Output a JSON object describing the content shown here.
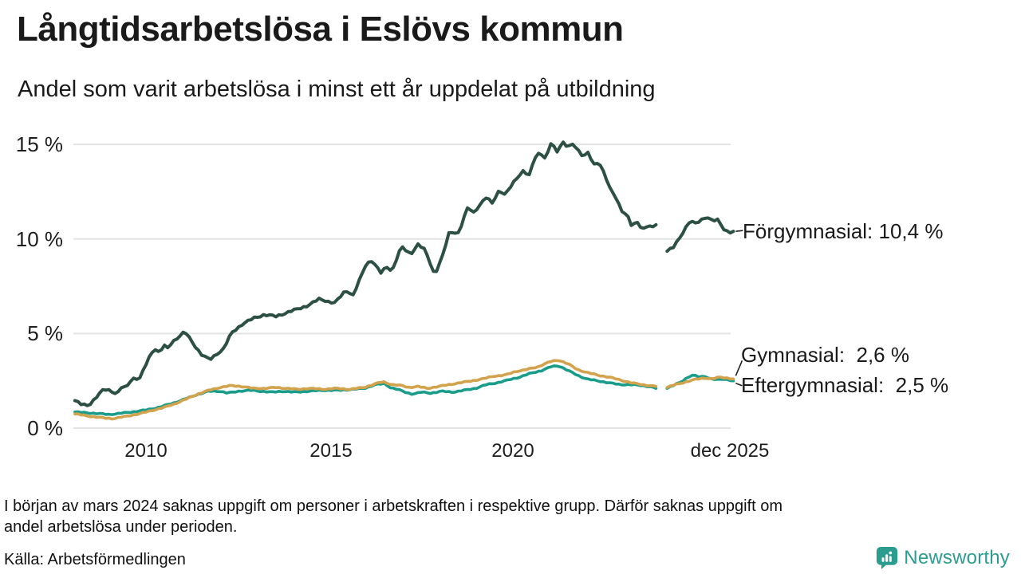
{
  "header": {
    "title": "Långtidsarbetslösa i Eslövs kommun",
    "subtitle": "Andel som varit arbetslösa i minst ett år uppdelat på utbildning"
  },
  "chart_data": {
    "type": "line",
    "unit": "%",
    "ylim": [
      0,
      15.5
    ],
    "x_range": [
      2008.08,
      2025.92
    ],
    "grid": "horizontal-only",
    "legend_position": "end-of-line-labels",
    "yticks": [
      {
        "value": 15,
        "label": "15 %"
      },
      {
        "value": 10,
        "label": "10 %"
      },
      {
        "value": 5,
        "label": "5 %"
      },
      {
        "value": 0,
        "label": "0 %"
      }
    ],
    "xticks": [
      {
        "year": 2010,
        "label": "2010"
      },
      {
        "year": 2015,
        "label": "2015"
      },
      {
        "year": 2020,
        "label": "2020"
      },
      {
        "year": 2025.92,
        "label": "dec 2025"
      }
    ],
    "data_gap": {
      "start": 2023.78,
      "end": 2024.08,
      "label": "mars 2024"
    },
    "series": [
      {
        "name": "Förgymnasial",
        "color": "#2d5045",
        "end_value": 10.4,
        "end_label": "Förgymnasial: 10,4 %",
        "points": [
          [
            2008.08,
            1.45
          ],
          [
            2008.25,
            1.25
          ],
          [
            2008.45,
            1.2
          ],
          [
            2008.64,
            1.6
          ],
          [
            2008.86,
            2.05
          ],
          [
            2009.03,
            2.0
          ],
          [
            2009.22,
            1.8
          ],
          [
            2009.35,
            2.2
          ],
          [
            2009.46,
            2.1
          ],
          [
            2009.57,
            2.5
          ],
          [
            2009.72,
            2.7
          ],
          [
            2009.8,
            2.5
          ],
          [
            2009.94,
            3.1
          ],
          [
            2010.15,
            4.0
          ],
          [
            2010.26,
            4.2
          ],
          [
            2010.37,
            3.95
          ],
          [
            2010.47,
            4.4
          ],
          [
            2010.58,
            4.2
          ],
          [
            2010.69,
            4.5
          ],
          [
            2010.8,
            4.7
          ],
          [
            2011.05,
            5.1
          ],
          [
            2011.3,
            4.4
          ],
          [
            2011.5,
            3.9
          ],
          [
            2011.72,
            3.6
          ],
          [
            2011.9,
            3.9
          ],
          [
            2012.1,
            4.2
          ],
          [
            2012.3,
            5.0
          ],
          [
            2012.6,
            5.5
          ],
          [
            2012.9,
            5.8
          ],
          [
            2013.2,
            6.0
          ],
          [
            2013.5,
            5.9
          ],
          [
            2013.8,
            6.1
          ],
          [
            2014.1,
            6.3
          ],
          [
            2014.4,
            6.5
          ],
          [
            2014.7,
            6.85
          ],
          [
            2014.9,
            6.7
          ],
          [
            2015.1,
            6.6
          ],
          [
            2015.4,
            7.3
          ],
          [
            2015.6,
            7.0
          ],
          [
            2015.95,
            8.7
          ],
          [
            2016.1,
            8.85
          ],
          [
            2016.35,
            8.2
          ],
          [
            2016.5,
            8.55
          ],
          [
            2016.65,
            8.3
          ],
          [
            2016.9,
            9.6
          ],
          [
            2017.15,
            9.2
          ],
          [
            2017.35,
            9.7
          ],
          [
            2017.55,
            9.4
          ],
          [
            2017.8,
            8.1
          ],
          [
            2018.0,
            9.0
          ],
          [
            2018.2,
            10.4
          ],
          [
            2018.45,
            10.3
          ],
          [
            2018.7,
            11.7
          ],
          [
            2018.85,
            11.4
          ],
          [
            2019.2,
            12.2
          ],
          [
            2019.35,
            11.9
          ],
          [
            2019.55,
            12.6
          ],
          [
            2019.7,
            12.3
          ],
          [
            2020.0,
            13.2
          ],
          [
            2020.2,
            13.6
          ],
          [
            2020.35,
            13.3
          ],
          [
            2020.5,
            14.3
          ],
          [
            2020.65,
            14.6
          ],
          [
            2020.8,
            14.2
          ],
          [
            2020.95,
            15.1
          ],
          [
            2021.1,
            14.6
          ],
          [
            2021.25,
            15.15
          ],
          [
            2021.4,
            14.85
          ],
          [
            2021.55,
            15.0
          ],
          [
            2021.8,
            14.4
          ],
          [
            2021.95,
            14.55
          ],
          [
            2022.1,
            13.9
          ],
          [
            2022.25,
            14.05
          ],
          [
            2022.4,
            13.4
          ],
          [
            2022.55,
            12.6
          ],
          [
            2022.7,
            12.15
          ],
          [
            2022.85,
            11.5
          ],
          [
            2023.0,
            11.3
          ],
          [
            2023.12,
            10.7
          ],
          [
            2023.28,
            10.85
          ],
          [
            2023.42,
            10.5
          ],
          [
            2023.56,
            10.75
          ],
          [
            2023.7,
            10.6
          ],
          [
            2023.78,
            10.75
          ]
        ],
        "points_after_gap": [
          [
            2024.08,
            9.35
          ],
          [
            2024.25,
            9.55
          ],
          [
            2024.4,
            10.0
          ],
          [
            2024.55,
            10.5
          ],
          [
            2024.7,
            10.95
          ],
          [
            2024.85,
            10.8
          ],
          [
            2025.0,
            11.0
          ],
          [
            2025.15,
            11.2
          ],
          [
            2025.3,
            10.95
          ],
          [
            2025.45,
            11.0
          ],
          [
            2025.6,
            10.55
          ],
          [
            2025.75,
            10.35
          ],
          [
            2025.87,
            10.4
          ]
        ]
      },
      {
        "name": "Gymnasial",
        "color": "#d3a24c",
        "end_value": 2.6,
        "end_label": "Gymnasial:  2,6 %",
        "points": [
          [
            2008.08,
            0.75
          ],
          [
            2008.4,
            0.65
          ],
          [
            2008.8,
            0.55
          ],
          [
            2009.1,
            0.5
          ],
          [
            2009.4,
            0.6
          ],
          [
            2009.8,
            0.75
          ],
          [
            2010.1,
            0.9
          ],
          [
            2010.5,
            1.1
          ],
          [
            2010.8,
            1.3
          ],
          [
            2011.1,
            1.55
          ],
          [
            2011.4,
            1.8
          ],
          [
            2011.7,
            2.0
          ],
          [
            2012.0,
            2.15
          ],
          [
            2012.3,
            2.25
          ],
          [
            2012.6,
            2.2
          ],
          [
            2012.9,
            2.1
          ],
          [
            2013.2,
            2.1
          ],
          [
            2013.5,
            2.15
          ],
          [
            2013.8,
            2.1
          ],
          [
            2014.1,
            2.05
          ],
          [
            2014.4,
            2.1
          ],
          [
            2014.8,
            2.05
          ],
          [
            2015.1,
            2.1
          ],
          [
            2015.5,
            2.05
          ],
          [
            2015.9,
            2.15
          ],
          [
            2016.2,
            2.35
          ],
          [
            2016.4,
            2.45
          ],
          [
            2016.65,
            2.3
          ],
          [
            2016.9,
            2.25
          ],
          [
            2017.1,
            2.15
          ],
          [
            2017.35,
            2.2
          ],
          [
            2017.6,
            2.1
          ],
          [
            2017.9,
            2.2
          ],
          [
            2018.2,
            2.3
          ],
          [
            2018.5,
            2.4
          ],
          [
            2018.8,
            2.5
          ],
          [
            2019.1,
            2.6
          ],
          [
            2019.4,
            2.75
          ],
          [
            2019.7,
            2.8
          ],
          [
            2020.0,
            3.0
          ],
          [
            2020.3,
            3.1
          ],
          [
            2020.6,
            3.25
          ],
          [
            2020.9,
            3.5
          ],
          [
            2021.15,
            3.6
          ],
          [
            2021.4,
            3.4
          ],
          [
            2021.65,
            3.1
          ],
          [
            2021.9,
            2.95
          ],
          [
            2022.2,
            2.8
          ],
          [
            2022.5,
            2.7
          ],
          [
            2022.8,
            2.55
          ],
          [
            2023.1,
            2.4
          ],
          [
            2023.4,
            2.3
          ],
          [
            2023.6,
            2.25
          ],
          [
            2023.78,
            2.2
          ]
        ],
        "points_after_gap": [
          [
            2024.08,
            2.15
          ],
          [
            2024.3,
            2.3
          ],
          [
            2024.5,
            2.4
          ],
          [
            2024.7,
            2.5
          ],
          [
            2024.9,
            2.6
          ],
          [
            2025.1,
            2.65
          ],
          [
            2025.3,
            2.6
          ],
          [
            2025.5,
            2.7
          ],
          [
            2025.7,
            2.65
          ],
          [
            2025.87,
            2.6
          ]
        ]
      },
      {
        "name": "Eftergymnasial",
        "color": "#1a9c8b",
        "end_value": 2.5,
        "end_label": "Eftergymnasial:  2,5 %",
        "points": [
          [
            2008.08,
            0.85
          ],
          [
            2008.5,
            0.8
          ],
          [
            2009.0,
            0.72
          ],
          [
            2009.3,
            0.78
          ],
          [
            2009.6,
            0.85
          ],
          [
            2010.0,
            0.95
          ],
          [
            2010.35,
            1.1
          ],
          [
            2010.7,
            1.3
          ],
          [
            2011.0,
            1.5
          ],
          [
            2011.35,
            1.75
          ],
          [
            2011.7,
            1.95
          ],
          [
            2012.0,
            1.95
          ],
          [
            2012.2,
            1.85
          ],
          [
            2012.5,
            1.95
          ],
          [
            2012.8,
            2.0
          ],
          [
            2013.1,
            1.95
          ],
          [
            2013.4,
            1.9
          ],
          [
            2013.7,
            1.95
          ],
          [
            2014.0,
            1.9
          ],
          [
            2014.4,
            1.95
          ],
          [
            2014.8,
            2.0
          ],
          [
            2015.2,
            2.0
          ],
          [
            2015.6,
            2.05
          ],
          [
            2015.9,
            2.1
          ],
          [
            2016.2,
            2.3
          ],
          [
            2016.45,
            2.35
          ],
          [
            2016.6,
            2.15
          ],
          [
            2016.8,
            2.05
          ],
          [
            2017.0,
            1.9
          ],
          [
            2017.2,
            1.8
          ],
          [
            2017.45,
            1.9
          ],
          [
            2017.7,
            1.85
          ],
          [
            2018.0,
            1.95
          ],
          [
            2018.3,
            1.9
          ],
          [
            2018.6,
            2.0
          ],
          [
            2018.9,
            2.1
          ],
          [
            2019.2,
            2.3
          ],
          [
            2019.5,
            2.4
          ],
          [
            2019.8,
            2.55
          ],
          [
            2020.1,
            2.7
          ],
          [
            2020.4,
            2.9
          ],
          [
            2020.7,
            3.05
          ],
          [
            2020.95,
            3.25
          ],
          [
            2021.15,
            3.3
          ],
          [
            2021.4,
            3.05
          ],
          [
            2021.65,
            2.8
          ],
          [
            2021.9,
            2.6
          ],
          [
            2022.2,
            2.5
          ],
          [
            2022.5,
            2.4
          ],
          [
            2022.8,
            2.3
          ],
          [
            2023.1,
            2.3
          ],
          [
            2023.4,
            2.25
          ],
          [
            2023.6,
            2.2
          ],
          [
            2023.78,
            2.1
          ]
        ],
        "points_after_gap": [
          [
            2024.08,
            2.1
          ],
          [
            2024.3,
            2.3
          ],
          [
            2024.5,
            2.5
          ],
          [
            2024.65,
            2.7
          ],
          [
            2024.8,
            2.8
          ],
          [
            2024.95,
            2.7
          ],
          [
            2025.1,
            2.75
          ],
          [
            2025.25,
            2.6
          ],
          [
            2025.45,
            2.55
          ],
          [
            2025.6,
            2.6
          ],
          [
            2025.75,
            2.55
          ],
          [
            2025.87,
            2.5
          ]
        ]
      }
    ],
    "colors": {
      "gridline": "#e3e3e3",
      "text": "#1a1a1a"
    }
  },
  "footnote": {
    "line1": "I början av mars 2024 saknas uppgift om personer i arbetskraften i respektive grupp. Därför saknas uppgift om",
    "line2": "andel arbetslösa under perioden."
  },
  "source": "Källa: Arbetsförmedlingen",
  "logo": {
    "text": "Newsworthy",
    "color": "#2b9c8e"
  }
}
